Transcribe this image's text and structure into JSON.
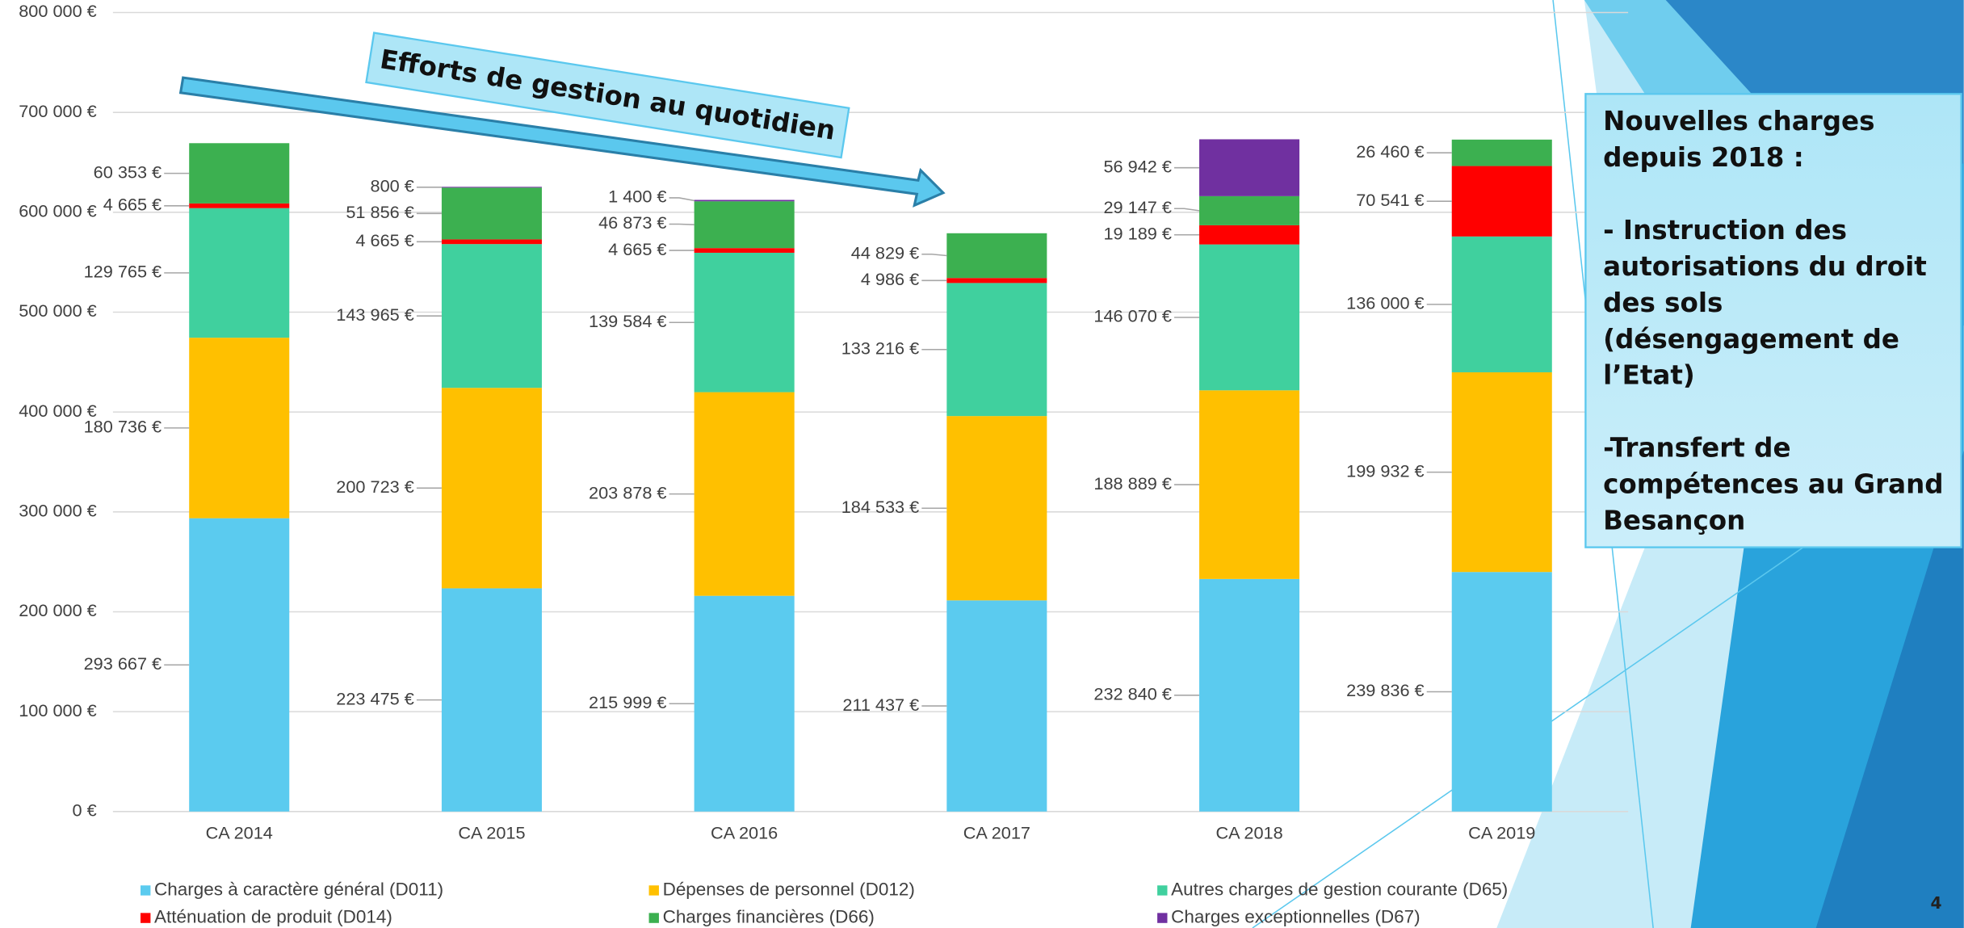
{
  "chart_data": {
    "type": "stacked-bar",
    "categories": [
      "CA 2014",
      "CA 2015",
      "CA 2016",
      "CA 2017",
      "CA 2018",
      "CA 2019"
    ],
    "series": [
      {
        "name": "Charges à caractère général (D011)",
        "color": "#5bcbef",
        "values": [
          293667,
          223475,
          215999,
          211437,
          232840,
          239836
        ],
        "value_labels": [
          "293 667 €",
          "223 475 €",
          "215 999 €",
          "211 437 €",
          "232 840 €",
          "239 836 €"
        ]
      },
      {
        "name": "Dépenses de personnel (D012)",
        "color": "#ffc000",
        "values": [
          180736,
          200723,
          203878,
          184533,
          188889,
          199932
        ],
        "value_labels": [
          "180 736 €",
          "200 723 €",
          "203 878 €",
          "184 533 €",
          "188 889 €",
          "199 932 €"
        ]
      },
      {
        "name": "Autres charges de gestion courante (D65)",
        "color": "#40d09e",
        "values": [
          129765,
          143965,
          139584,
          133216,
          146070,
          136000
        ],
        "value_labels": [
          "129 765 €",
          "143 965 €",
          "139 584 €",
          "133 216 €",
          "146 070 €",
          "136 000 €"
        ]
      },
      {
        "name": "Atténuation de produit (D014)",
        "color": "#ff0000",
        "values": [
          4665,
          4665,
          4665,
          4986,
          19189,
          70541
        ],
        "value_labels": [
          "4 665 €",
          "4 665 €",
          "4 665 €",
          "4 986 €",
          "19 189 €",
          "70 541 €"
        ]
      },
      {
        "name": "Charges financières (D66)",
        "color": "#3cb050",
        "values": [
          60353,
          51856,
          46873,
          44829,
          29147,
          26460
        ],
        "value_labels": [
          "60 353 €",
          "51 856 €",
          "46 873 €",
          "44 829 €",
          "29 147 €",
          "26 460 €"
        ]
      },
      {
        "name": "Charges exceptionnelles (D67)",
        "color": "#7030a0",
        "values": [
          null,
          800,
          1400,
          null,
          56942,
          null
        ],
        "value_labels": [
          null,
          "800 €",
          "1 400 €",
          null,
          "56 942 €",
          null
        ]
      }
    ],
    "ylim": [
      0,
      800000
    ],
    "yticks": [
      {
        "value": 0,
        "label": "0 €"
      },
      {
        "value": 100000,
        "label": "100 000 €"
      },
      {
        "value": 200000,
        "label": "200 000 €"
      },
      {
        "value": 300000,
        "label": "300 000 €"
      },
      {
        "value": 400000,
        "label": "400 000 €"
      },
      {
        "value": 500000,
        "label": "500 000 €"
      },
      {
        "value": 600000,
        "label": "600 000 €"
      },
      {
        "value": 700000,
        "label": "700 000 €"
      },
      {
        "value": 800000,
        "label": "800 000 €"
      }
    ],
    "grid": true
  },
  "annotations": {
    "arrow_text": "Efforts de gestion au quotidien",
    "note_box": [
      [
        "Nouvelles charges",
        "depuis 2018 :"
      ],
      [
        "- Instruction des",
        "autorisations du droit",
        "des sols",
        "(désengagement de",
        "l’Etat)"
      ],
      [
        "-Transfert de",
        "compétences au Grand",
        "Besançon"
      ]
    ],
    "page_number": "4"
  }
}
